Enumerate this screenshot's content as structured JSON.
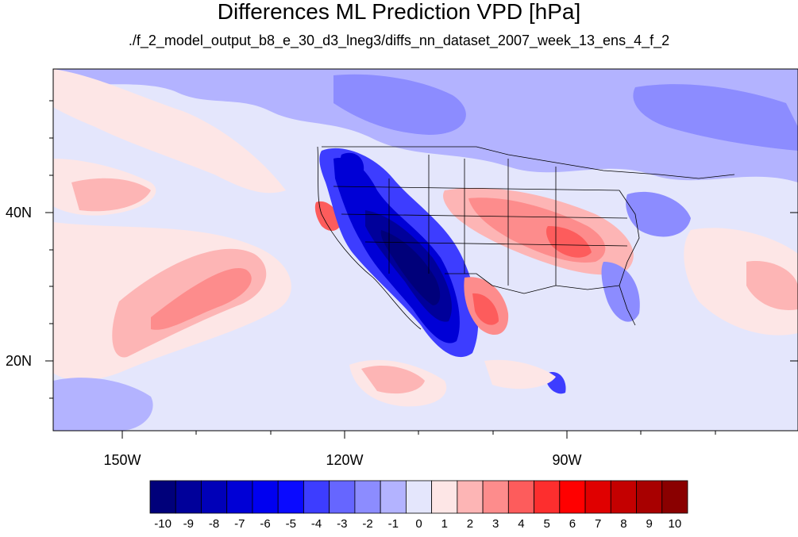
{
  "title": "Differences ML Prediction VPD [hPa]",
  "subtitle": "./f_2_model_output_b8_e_30_d3_lneg3/diffs_nn_dataset_2007_week_13_ens_4_f_2",
  "map": {
    "lat_ticks": [
      "40N",
      "20N"
    ],
    "lon_ticks": [
      "150W",
      "120W",
      "90W"
    ]
  },
  "colorbar": {
    "labels": [
      "-10",
      "-9",
      "-8",
      "-7",
      "-6",
      "-5",
      "-4",
      "-3",
      "-2",
      "-1",
      "0",
      "1",
      "2",
      "3",
      "4",
      "5",
      "6",
      "7",
      "8",
      "9",
      "10"
    ],
    "colors": [
      "#00007a",
      "#00009a",
      "#0000b8",
      "#0000d6",
      "#0000f0",
      "#0a0aff",
      "#3d3dff",
      "#6666ff",
      "#8c8cff",
      "#b3b3ff",
      "#e4e6fc",
      "#fde6e6",
      "#fdb5b5",
      "#fd8c8c",
      "#fd5c5c",
      "#fd2e2e",
      "#ff0000",
      "#e00000",
      "#c40000",
      "#a80000",
      "#8a0000"
    ]
  }
}
